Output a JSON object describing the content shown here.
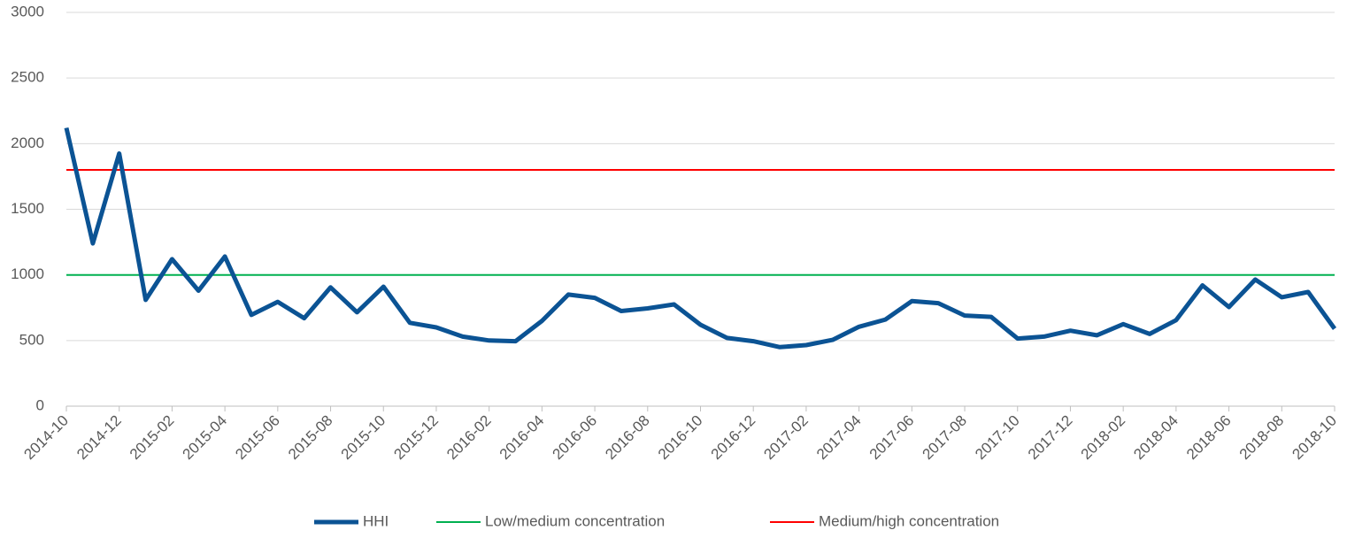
{
  "chart_data": {
    "type": "line",
    "categories": [
      "2014-10",
      null,
      "2014-12",
      null,
      "2015-02",
      null,
      "2015-04",
      null,
      "2015-06",
      null,
      "2015-08",
      null,
      "2015-10",
      null,
      "2015-12",
      null,
      "2016-02",
      null,
      "2016-04",
      null,
      "2016-06",
      null,
      "2016-08",
      null,
      "2016-10",
      null,
      "2016-12",
      null,
      "2017-02",
      null,
      "2017-04",
      null,
      "2017-06",
      null,
      "2017-08",
      null,
      "2017-10",
      null,
      "2017-12",
      null,
      "2018-02",
      null,
      "2018-04",
      null,
      "2018-06",
      null,
      "2018-08",
      null,
      "2018-10"
    ],
    "series": [
      {
        "name": "HHI",
        "color": "#0b5394",
        "values": [
          2120,
          1240,
          1925,
          810,
          1120,
          880,
          1140,
          695,
          795,
          670,
          905,
          715,
          910,
          635,
          600,
          530,
          500,
          495,
          650,
          850,
          825,
          725,
          745,
          775,
          620,
          520,
          495,
          450,
          465,
          505,
          605,
          660,
          800,
          785,
          690,
          680,
          515,
          530,
          575,
          540,
          625,
          550,
          655,
          920,
          755,
          965,
          830,
          870,
          590
        ]
      },
      {
        "name": "Low/medium concentration",
        "color": "#00b050",
        "values": [
          1000,
          1000,
          1000,
          1000,
          1000,
          1000,
          1000,
          1000,
          1000,
          1000,
          1000,
          1000,
          1000,
          1000,
          1000,
          1000,
          1000,
          1000,
          1000,
          1000,
          1000,
          1000,
          1000,
          1000,
          1000,
          1000,
          1000,
          1000,
          1000,
          1000,
          1000,
          1000,
          1000,
          1000,
          1000,
          1000,
          1000,
          1000,
          1000,
          1000,
          1000,
          1000,
          1000,
          1000,
          1000,
          1000,
          1000,
          1000,
          1000
        ]
      },
      {
        "name": "Medium/high concentration",
        "color": "#ff0000",
        "values": [
          1800,
          1800,
          1800,
          1800,
          1800,
          1800,
          1800,
          1800,
          1800,
          1800,
          1800,
          1800,
          1800,
          1800,
          1800,
          1800,
          1800,
          1800,
          1800,
          1800,
          1800,
          1800,
          1800,
          1800,
          1800,
          1800,
          1800,
          1800,
          1800,
          1800,
          1800,
          1800,
          1800,
          1800,
          1800,
          1800,
          1800,
          1800,
          1800,
          1800,
          1800,
          1800,
          1800,
          1800,
          1800,
          1800,
          1800,
          1800,
          1800
        ]
      }
    ],
    "ylim": [
      0,
      3000
    ],
    "yticks": [
      0,
      500,
      1000,
      1500,
      2000,
      2500,
      3000
    ],
    "grid": true,
    "legend": "bottom"
  }
}
